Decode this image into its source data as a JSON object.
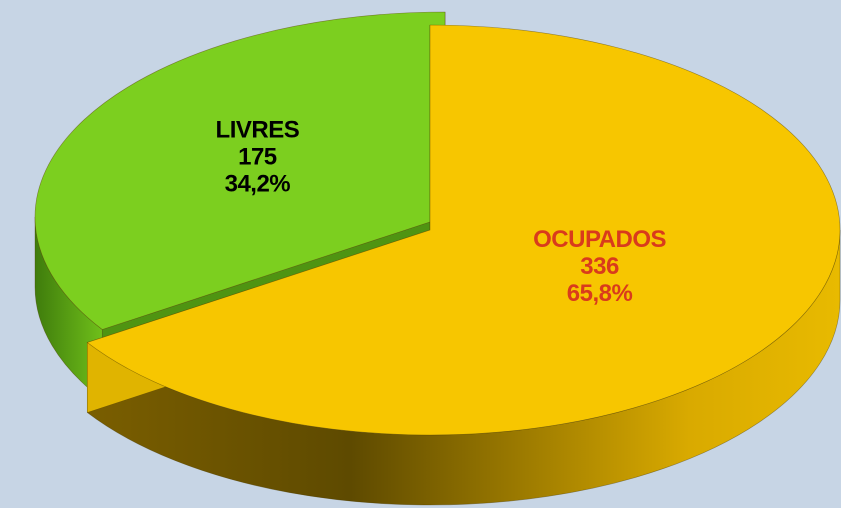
{
  "chart_data": {
    "type": "pie",
    "categories": [
      "OCUPADOS",
      "LIVRES"
    ],
    "values": [
      336,
      175
    ],
    "percent_labels": [
      "65,8%",
      "34,2%"
    ],
    "colors": [
      "#f7c600",
      "#7ccf1f"
    ],
    "label_colors": [
      "#d93b1c",
      "#000000"
    ]
  }
}
